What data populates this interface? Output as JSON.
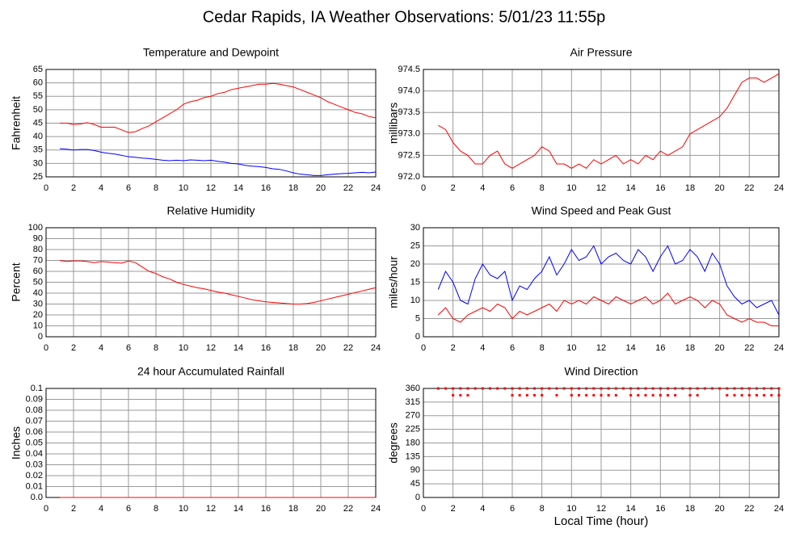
{
  "title": "Cedar Rapids, IA Weather Observations: 5/01/23 11:55p",
  "chart_data": [
    {
      "type": "line",
      "title": "Temperature and Dewpoint",
      "ylabel": "Fahrenheit",
      "x": [
        1,
        1.5,
        2,
        2.5,
        3,
        3.5,
        4,
        4.5,
        5,
        5.5,
        6,
        6.5,
        7,
        7.5,
        8,
        8.5,
        9,
        9.5,
        10,
        10.5,
        11,
        11.5,
        12,
        12.5,
        13,
        13.5,
        14,
        14.5,
        15,
        15.5,
        16,
        16.5,
        17,
        17.5,
        18,
        18.5,
        19,
        19.5,
        20,
        20.5,
        21,
        21.5,
        22,
        22.5,
        23,
        23.5,
        24
      ],
      "xlim": [
        0,
        24
      ],
      "xticks": [
        0,
        2,
        4,
        6,
        8,
        10,
        12,
        14,
        16,
        18,
        20,
        22,
        24
      ],
      "ylim": [
        25,
        65
      ],
      "yticks": [
        25,
        30,
        35,
        40,
        45,
        50,
        55,
        60,
        65
      ],
      "grid": true,
      "series": [
        {
          "color": "#ff0000",
          "values": [
            45,
            45,
            44.5,
            44.7,
            45.2,
            44.5,
            43.5,
            43.5,
            43.5,
            42.5,
            41.5,
            41.8,
            43,
            44,
            45.5,
            47,
            48.5,
            50,
            52,
            53,
            53.5,
            54.5,
            55,
            56,
            56.5,
            57.5,
            58,
            58.5,
            59,
            59.5,
            59.5,
            59.8,
            59.5,
            59,
            58.5,
            57.5,
            56.5,
            55.5,
            54.5,
            53,
            52,
            51,
            50,
            49,
            48.5,
            47.5,
            47
          ]
        },
        {
          "color": "#0000ff",
          "values": [
            35.5,
            35.3,
            35,
            35.2,
            35.2,
            34.8,
            34.2,
            33.8,
            33.5,
            33,
            32.5,
            32.3,
            32,
            31.8,
            31.5,
            31.2,
            31,
            31.2,
            31,
            31.3,
            31.2,
            31,
            31.2,
            30.8,
            30.5,
            30,
            29.8,
            29.3,
            29,
            28.8,
            28.5,
            28,
            27.8,
            27.2,
            26.5,
            26,
            25.8,
            25.5,
            25.5,
            25.8,
            26,
            26.2,
            26.3,
            26.5,
            26.7,
            26.5,
            26.8
          ]
        }
      ]
    },
    {
      "type": "line",
      "title": "Air Pressure",
      "ylabel": "millibars",
      "x": [
        1,
        1.5,
        2,
        2.5,
        3,
        3.5,
        4,
        4.5,
        5,
        5.5,
        6,
        6.5,
        7,
        7.5,
        8,
        8.5,
        9,
        9.5,
        10,
        10.5,
        11,
        11.5,
        12,
        12.5,
        13,
        13.5,
        14,
        14.5,
        15,
        15.5,
        16,
        16.5,
        17,
        17.5,
        18,
        18.5,
        19,
        19.5,
        20,
        20.5,
        21,
        21.5,
        22,
        22.5,
        23,
        23.5,
        24
      ],
      "xlim": [
        0,
        24
      ],
      "xticks": [
        0,
        2,
        4,
        6,
        8,
        10,
        12,
        14,
        16,
        18,
        20,
        22,
        24
      ],
      "ylim": [
        972,
        974.5
      ],
      "yticks": [
        {
          "value": 972,
          "label": "972.0"
        },
        972.5,
        {
          "value": 973,
          "label": "973.0"
        },
        973.5,
        {
          "value": 974,
          "label": "974.0"
        },
        974.5
      ],
      "grid": true,
      "series": [
        {
          "color": "#ff0000",
          "values": [
            973.2,
            973.1,
            972.8,
            972.6,
            972.5,
            972.3,
            972.3,
            972.5,
            972.6,
            972.3,
            972.2,
            972.3,
            972.4,
            972.5,
            972.7,
            972.6,
            972.3,
            972.3,
            972.2,
            972.3,
            972.2,
            972.4,
            972.3,
            972.4,
            972.5,
            972.3,
            972.4,
            972.3,
            972.5,
            972.4,
            972.6,
            972.5,
            972.6,
            972.7,
            973.0,
            973.1,
            973.2,
            973.3,
            973.4,
            973.6,
            973.9,
            974.2,
            974.3,
            974.3,
            974.2,
            974.3,
            974.4
          ]
        }
      ]
    },
    {
      "type": "line",
      "title": "Relative Humidity",
      "ylabel": "Percent",
      "x": [
        1,
        1.5,
        2,
        2.5,
        3,
        3.5,
        4,
        4.5,
        5,
        5.5,
        6,
        6.5,
        7,
        7.5,
        8,
        8.5,
        9,
        9.5,
        10,
        10.5,
        11,
        11.5,
        12,
        12.5,
        13,
        13.5,
        14,
        14.5,
        15,
        15.5,
        16,
        16.5,
        17,
        17.5,
        18,
        18.5,
        19,
        19.5,
        20,
        20.5,
        21,
        21.5,
        22,
        22.5,
        23,
        23.5,
        24
      ],
      "xlim": [
        0,
        24
      ],
      "xticks": [
        0,
        2,
        4,
        6,
        8,
        10,
        12,
        14,
        16,
        18,
        20,
        22,
        24
      ],
      "ylim": [
        0,
        100
      ],
      "yticks": [
        0,
        10,
        20,
        30,
        40,
        50,
        60,
        70,
        80,
        90,
        100
      ],
      "grid": true,
      "series": [
        {
          "color": "#ff0000",
          "values": [
            70,
            69,
            69.5,
            69.5,
            69,
            68,
            69,
            68.5,
            68,
            67.5,
            69.5,
            68,
            64,
            60,
            58,
            55,
            53,
            50,
            48,
            46.5,
            45,
            44,
            42.5,
            41,
            40,
            38.5,
            37,
            35.5,
            34,
            33,
            32,
            31.5,
            31,
            30.5,
            30,
            30,
            30.5,
            31.5,
            33,
            34.5,
            36,
            37.5,
            39,
            40.5,
            42,
            43.5,
            45
          ]
        }
      ]
    },
    {
      "type": "line",
      "title": "Wind Speed and Peak Gust",
      "ylabel": "miles/hour",
      "x": [
        1,
        1.5,
        2,
        2.5,
        3,
        3.5,
        4,
        4.5,
        5,
        5.5,
        6,
        6.5,
        7,
        7.5,
        8,
        8.5,
        9,
        9.5,
        10,
        10.5,
        11,
        11.5,
        12,
        12.5,
        13,
        13.5,
        14,
        14.5,
        15,
        15.5,
        16,
        16.5,
        17,
        17.5,
        18,
        18.5,
        19,
        19.5,
        20,
        20.5,
        21,
        21.5,
        22,
        22.5,
        23,
        23.5,
        24
      ],
      "xlim": [
        0,
        24
      ],
      "xticks": [
        0,
        2,
        4,
        6,
        8,
        10,
        12,
        14,
        16,
        18,
        20,
        22,
        24
      ],
      "ylim": [
        0,
        30
      ],
      "yticks": [
        0,
        5,
        10,
        15,
        20,
        25,
        30
      ],
      "grid": true,
      "series": [
        {
          "color": "#0000ff",
          "values": [
            13,
            18,
            15,
            10,
            9,
            16,
            20,
            17,
            16,
            18,
            10,
            14,
            13,
            16,
            18,
            22,
            17,
            20,
            24,
            21,
            22,
            25,
            20,
            22,
            23,
            21,
            20,
            24,
            22,
            18,
            22,
            25,
            20,
            21,
            24,
            22,
            18,
            23,
            20,
            14,
            11,
            9,
            10,
            8,
            9,
            10,
            6
          ]
        },
        {
          "color": "#ff0000",
          "values": [
            6,
            8,
            5,
            4,
            6,
            7,
            8,
            7,
            9,
            8,
            5,
            7,
            6,
            7,
            8,
            9,
            7,
            10,
            9,
            10,
            9,
            11,
            10,
            9,
            11,
            10,
            9,
            10,
            11,
            9,
            10,
            12,
            9,
            10,
            11,
            10,
            8,
            10,
            9,
            6,
            5,
            4,
            5,
            4,
            4,
            3,
            3
          ]
        }
      ]
    },
    {
      "type": "line",
      "title": "24 hour Accumulated Rainfall",
      "ylabel": "Inches",
      "x": [
        1,
        1.5,
        2,
        2.5,
        3,
        3.5,
        4,
        4.5,
        5,
        5.5,
        6,
        6.5,
        7,
        7.5,
        8,
        8.5,
        9,
        9.5,
        10,
        10.5,
        11,
        11.5,
        12,
        12.5,
        13,
        13.5,
        14,
        14.5,
        15,
        15.5,
        16,
        16.5,
        17,
        17.5,
        18,
        18.5,
        19,
        19.5,
        20,
        20.5,
        21,
        21.5,
        22,
        22.5,
        23,
        23.5,
        24
      ],
      "xlim": [
        0,
        24
      ],
      "xticks": [
        0,
        2,
        4,
        6,
        8,
        10,
        12,
        14,
        16,
        18,
        20,
        22,
        24
      ],
      "ylim": [
        0,
        0.1
      ],
      "yticks": [
        {
          "value": 0,
          "label": "0.0"
        },
        0.01,
        0.02,
        0.03,
        0.04,
        0.05,
        0.06,
        0.07,
        0.08,
        0.09,
        0.1
      ],
      "grid": true,
      "series": [
        {
          "color": "#ff0000",
          "values": [
            0,
            0,
            0,
            0,
            0,
            0,
            0,
            0,
            0,
            0,
            0,
            0,
            0,
            0,
            0,
            0,
            0,
            0,
            0,
            0,
            0,
            0,
            0,
            0,
            0,
            0,
            0,
            0,
            0,
            0,
            0,
            0,
            0,
            0,
            0,
            0,
            0,
            0,
            0,
            0,
            0,
            0,
            0,
            0,
            0,
            0,
            0
          ]
        }
      ]
    },
    {
      "type": "scatter",
      "title": "Wind Direction",
      "ylabel": "degrees",
      "xlabel": "Local Time (hour)",
      "x": [
        1,
        1.5,
        2,
        2.5,
        3,
        3.5,
        4,
        4.5,
        5,
        5.5,
        6,
        6.5,
        7,
        7.5,
        8,
        8.5,
        9,
        9.5,
        10,
        10.5,
        11,
        11.5,
        12,
        12.5,
        13,
        13.5,
        14,
        14.5,
        15,
        15.5,
        16,
        16.5,
        17,
        17.5,
        18,
        18.5,
        19,
        19.5,
        20,
        20.5,
        21,
        21.5,
        22,
        22.5,
        23,
        23.5,
        24,
        2,
        2.5,
        3,
        6,
        6.5,
        7,
        7.5,
        8,
        9,
        10,
        10.5,
        11,
        11.5,
        12,
        12.5,
        13,
        14,
        14.5,
        15,
        15.5,
        16,
        16.5,
        17,
        18,
        18.5,
        20.5,
        21,
        21.5,
        22,
        22.5,
        23,
        23.5,
        24
      ],
      "values": [
        360,
        360,
        360,
        360,
        360,
        360,
        360,
        360,
        360,
        360,
        360,
        360,
        360,
        360,
        360,
        360,
        360,
        360,
        360,
        360,
        360,
        360,
        360,
        360,
        360,
        360,
        360,
        360,
        360,
        360,
        360,
        360,
        360,
        360,
        360,
        360,
        360,
        360,
        360,
        360,
        360,
        360,
        360,
        360,
        360,
        360,
        360,
        337.5,
        337.5,
        337.5,
        337.5,
        337.5,
        337.5,
        337.5,
        337.5,
        337.5,
        337.5,
        337.5,
        337.5,
        337.5,
        337.5,
        337.5,
        337.5,
        337.5,
        337.5,
        337.5,
        337.5,
        337.5,
        337.5,
        337.5,
        337.5,
        337.5,
        337.5,
        337.5,
        337.5,
        337.5,
        337.5,
        337.5,
        337.5,
        337.5
      ],
      "color": "#ff0000",
      "xlim": [
        0,
        24
      ],
      "xticks": [
        0,
        2,
        4,
        6,
        8,
        10,
        12,
        14,
        16,
        18,
        20,
        22,
        24
      ],
      "ylim": [
        0,
        360
      ],
      "yticks": [
        0,
        45,
        90,
        135,
        180,
        225,
        270,
        315,
        360
      ],
      "grid": true
    }
  ]
}
